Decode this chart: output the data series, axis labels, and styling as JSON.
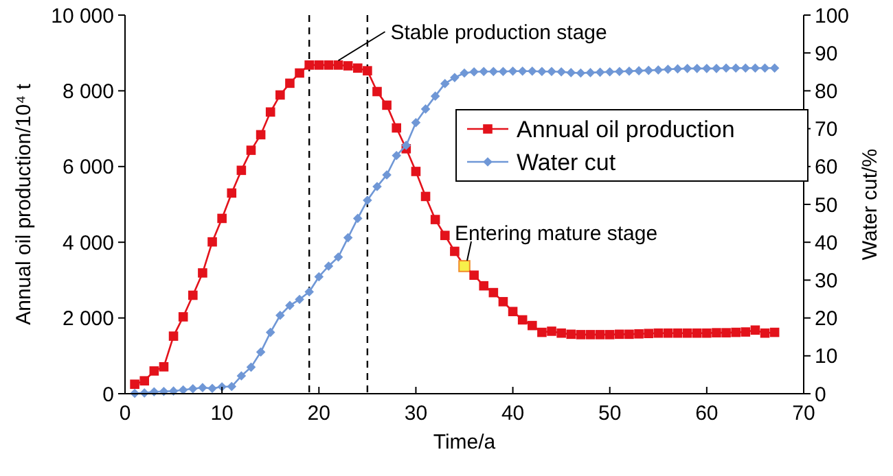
{
  "chart_data": {
    "type": "line",
    "xlabel": "Time/a",
    "ylabel": "Annual oil production/10⁴ t",
    "y2label": "Water cut/%",
    "x": [
      1,
      2,
      3,
      4,
      5,
      6,
      7,
      8,
      9,
      10,
      11,
      12,
      13,
      14,
      15,
      16,
      17,
      18,
      19,
      20,
      21,
      22,
      23,
      24,
      25,
      26,
      27,
      28,
      29,
      30,
      31,
      32,
      33,
      34,
      35,
      36,
      37,
      38,
      39,
      40,
      41,
      42,
      43,
      44,
      45,
      46,
      47,
      48,
      49,
      50,
      51,
      52,
      53,
      54,
      55,
      56,
      57,
      58,
      59,
      60,
      61,
      62,
      63,
      64,
      65,
      66,
      67
    ],
    "series": [
      {
        "name": "Annual oil production",
        "color": "#e3121b",
        "marker": "square",
        "values": [
          250,
          340,
          600,
          710,
          1520,
          2030,
          2600,
          3190,
          4010,
          4630,
          5300,
          5900,
          6430,
          6840,
          7440,
          7890,
          8200,
          8470,
          8680,
          8680,
          8680,
          8680,
          8660,
          8600,
          8530,
          7980,
          7620,
          7020,
          6470,
          5870,
          5210,
          4600,
          4180,
          3760,
          3370,
          3130,
          2850,
          2670,
          2430,
          2170,
          1950,
          1800,
          1620,
          1650,
          1600,
          1570,
          1560,
          1560,
          1560,
          1560,
          1570,
          1570,
          1580,
          1590,
          1600,
          1600,
          1600,
          1600,
          1600,
          1600,
          1610,
          1610,
          1620,
          1630,
          1680,
          1600,
          1620
        ]
      },
      {
        "name": "Water cut",
        "color": "#6f97d6",
        "marker": "diamond",
        "axis": "y2",
        "values": [
          0.1,
          0.2,
          0.5,
          0.6,
          0.7,
          1.0,
          1.3,
          1.6,
          1.4,
          1.8,
          1.9,
          4.7,
          7.0,
          11,
          16.2,
          20.7,
          23.3,
          24.9,
          26.9,
          30.9,
          33.7,
          36.1,
          41.2,
          46.3,
          51.1,
          54.7,
          57.8,
          62.9,
          65.6,
          71.6,
          75.2,
          78.6,
          81.9,
          83.5,
          84.7,
          85.0,
          85.1,
          85.1,
          85.1,
          85.2,
          85.2,
          85.2,
          85.1,
          85.1,
          85.0,
          84.8,
          84.7,
          84.8,
          84.9,
          85.0,
          85.1,
          85.2,
          85.3,
          85.4,
          85.5,
          85.7,
          85.8,
          85.9,
          85.9,
          85.9,
          85.9,
          86.0,
          86.0,
          86.0,
          86.0,
          86.0,
          86.0
        ]
      }
    ],
    "xlim": [
      0,
      70
    ],
    "xticks": [
      0,
      10,
      20,
      30,
      40,
      50,
      60,
      70
    ],
    "ylim": [
      0,
      10000
    ],
    "yticks": [
      {
        "value": 0,
        "label": "0"
      },
      {
        "value": 2000,
        "label": "2 000"
      },
      {
        "value": 4000,
        "label": "4 000"
      },
      {
        "value": 6000,
        "label": "6 000"
      },
      {
        "value": 8000,
        "label": "8 000"
      },
      {
        "value": 10000,
        "label": "10 000"
      }
    ],
    "y2lim": [
      0,
      100
    ],
    "y2ticks": [
      0,
      10,
      20,
      30,
      40,
      50,
      60,
      70,
      80,
      90,
      100
    ],
    "ref_lines": [
      {
        "axis": "x",
        "value": 19,
        "line_style": "dashed",
        "color": "#000000"
      },
      {
        "axis": "x",
        "value": 25,
        "line_style": "dashed",
        "color": "#000000"
      }
    ],
    "annotations": [
      {
        "text": "Stable production stage",
        "x": 22,
        "y": 8800
      },
      {
        "text": "Entering mature stage",
        "x": 35,
        "y": 3370
      }
    ],
    "legend": "right",
    "grid": false,
    "line_style": "solid"
  }
}
